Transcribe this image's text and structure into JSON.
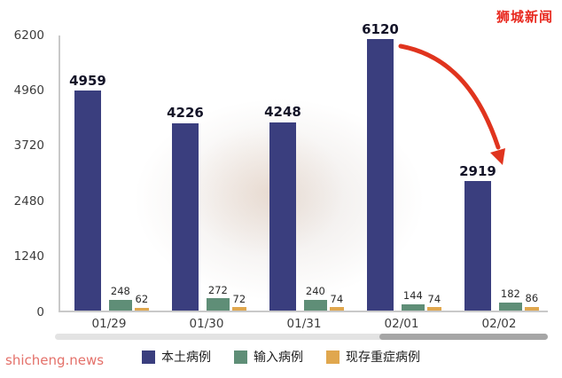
{
  "branding": {
    "logo_text": "狮城新闻",
    "logo_color": "#e8281e",
    "site_text": "shicheng.news",
    "site_color": "#e4716a"
  },
  "chart_data": {
    "type": "bar",
    "title": "",
    "xlabel": "",
    "ylabel": "",
    "categories": [
      "01/29",
      "01/30",
      "01/31",
      "02/01",
      "02/02"
    ],
    "series": [
      {
        "name": "本土病例",
        "color": "#3a3e7e",
        "values": [
          4959,
          4226,
          4248,
          6120,
          2919
        ]
      },
      {
        "name": "输入病例",
        "color": "#5f8e77",
        "values": [
          248,
          272,
          240,
          144,
          182
        ]
      },
      {
        "name": "现存重症病例",
        "color": "#e0a74e",
        "values": [
          62,
          72,
          74,
          74,
          86
        ]
      }
    ],
    "ylim": [
      0,
      6200
    ],
    "yticks": [
      0,
      1240,
      2480,
      3720,
      4960,
      6200
    ],
    "grid": false,
    "legend_position": "bottom",
    "annotation": "red arrow indicating drop from 02/01 peak (6120) down toward 02/02 (2919)",
    "arrow_color": "#e0341e"
  }
}
